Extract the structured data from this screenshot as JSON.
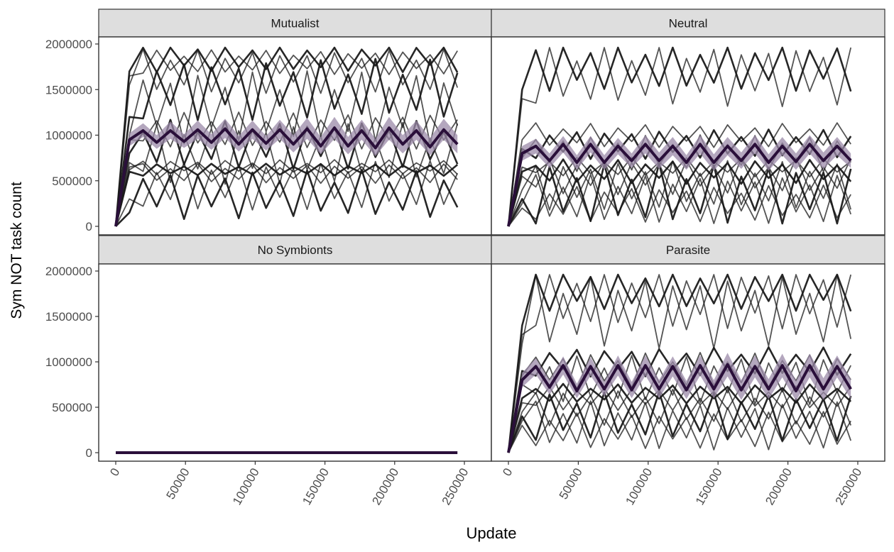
{
  "chart_data": {
    "type": "line",
    "layout": "facet-grid-2x2",
    "ylabel": "Sym NOT task count",
    "xlabel": "Update",
    "xlim": [
      0,
      245000
    ],
    "ylim": [
      0,
      2000000
    ],
    "x_ticks": [
      0,
      50000,
      100000,
      150000,
      200000,
      250000
    ],
    "x_tick_labels": [
      "0",
      "50000",
      "100000",
      "150000",
      "200000",
      "250000"
    ],
    "y_ticks": [
      0,
      500000,
      1000000,
      1500000,
      2000000
    ],
    "y_tick_labels": [
      "0",
      "500000",
      "1000000",
      "1500000",
      "2000000"
    ],
    "grid": false,
    "colors": {
      "runs": "#1a1a1a",
      "mean": "#2a0f3a",
      "ribbon": "#9b8aa8",
      "strip": "#dedede"
    },
    "panels": [
      {
        "title": "Mutualist",
        "mean": [
          0,
          950000,
          1050000,
          920000,
          1050000,
          930000,
          1060000,
          920000,
          1070000,
          900000,
          1060000,
          910000,
          1060000,
          900000,
          1070000,
          880000,
          1080000,
          880000,
          1050000,
          860000,
          1080000,
          900000,
          1050000,
          870000,
          1060000,
          900000
        ],
        "ribbon_low": [
          0,
          880000,
          980000,
          850000,
          960000,
          860000,
          960000,
          840000,
          970000,
          820000,
          960000,
          830000,
          960000,
          810000,
          960000,
          790000,
          960000,
          790000,
          950000,
          770000,
          950000,
          800000,
          950000,
          780000,
          950000,
          800000
        ],
        "ribbon_high": [
          0,
          1020000,
          1130000,
          1000000,
          1150000,
          1010000,
          1160000,
          1010000,
          1180000,
          990000,
          1160000,
          990000,
          1170000,
          1000000,
          1190000,
          980000,
          1200000,
          980000,
          1170000,
          960000,
          1200000,
          1000000,
          1160000,
          970000,
          1180000,
          1000000
        ],
        "runs": [
          {
            "base": 1850000,
            "amp": 120000,
            "start": 1700000
          },
          {
            "base": 1800000,
            "amp": 100000,
            "start": 1650000
          },
          {
            "base": 1700000,
            "amp": 180000,
            "start": 1550000
          },
          {
            "base": 1500000,
            "amp": 250000,
            "start": 1200000
          },
          {
            "base": 1300000,
            "amp": 300000,
            "start": 1000000
          },
          {
            "base": 1050000,
            "amp": 150000,
            "start": 950000
          },
          {
            "base": 900000,
            "amp": 200000,
            "start": 800000
          },
          {
            "base": 800000,
            "amp": 250000,
            "start": 700000
          },
          {
            "base": 650000,
            "amp": 60000,
            "start": 620000
          },
          {
            "base": 620000,
            "amp": 50000,
            "start": 600000
          },
          {
            "base": 580000,
            "amp": 80000,
            "start": 650000
          },
          {
            "base": 450000,
            "amp": 200000,
            "start": 300000
          },
          {
            "base": 350000,
            "amp": 200000,
            "start": 150000
          }
        ]
      },
      {
        "title": "Neutral",
        "mean": [
          0,
          800000,
          880000,
          720000,
          900000,
          700000,
          900000,
          700000,
          880000,
          720000,
          900000,
          720000,
          880000,
          700000,
          900000,
          700000,
          880000,
          720000,
          900000,
          700000,
          880000,
          710000,
          900000,
          720000,
          880000,
          720000
        ],
        "ribbon_low": [
          0,
          720000,
          800000,
          640000,
          810000,
          620000,
          810000,
          620000,
          790000,
          640000,
          800000,
          630000,
          780000,
          620000,
          800000,
          610000,
          780000,
          630000,
          800000,
          610000,
          780000,
          620000,
          800000,
          630000,
          780000,
          640000
        ],
        "ribbon_high": [
          0,
          880000,
          960000,
          800000,
          990000,
          780000,
          990000,
          780000,
          970000,
          800000,
          1000000,
          810000,
          980000,
          780000,
          1000000,
          790000,
          980000,
          810000,
          1000000,
          790000,
          980000,
          800000,
          1000000,
          810000,
          980000,
          800000
        ],
        "runs": [
          {
            "base": 1750000,
            "amp": 200000,
            "start": 1500000
          },
          {
            "base": 1650000,
            "amp": 250000,
            "start": 1400000
          },
          {
            "base": 1000000,
            "amp": 100000,
            "start": 950000
          },
          {
            "base": 900000,
            "amp": 120000,
            "start": 850000
          },
          {
            "base": 800000,
            "amp": 150000,
            "start": 750000
          },
          {
            "base": 650000,
            "amp": 80000,
            "start": 650000
          },
          {
            "base": 600000,
            "amp": 100000,
            "start": 600000
          },
          {
            "base": 550000,
            "amp": 150000,
            "start": 550000
          },
          {
            "base": 450000,
            "amp": 200000,
            "start": 400000
          },
          {
            "base": 350000,
            "amp": 250000,
            "start": 300000
          },
          {
            "base": 300000,
            "amp": 200000,
            "start": 250000
          },
          {
            "base": 250000,
            "amp": 150000,
            "start": 200000
          }
        ]
      },
      {
        "title": "No Symbionts",
        "mean": [
          0,
          0,
          0,
          0,
          0,
          0,
          0,
          0,
          0,
          0,
          0,
          0,
          0,
          0,
          0,
          0,
          0,
          0,
          0,
          0,
          0,
          0,
          0,
          0,
          0,
          0
        ],
        "ribbon_low": [],
        "ribbon_high": [],
        "runs": []
      },
      {
        "title": "Parasite",
        "mean": [
          0,
          800000,
          950000,
          720000,
          960000,
          680000,
          950000,
          700000,
          960000,
          690000,
          960000,
          700000,
          950000,
          690000,
          960000,
          700000,
          970000,
          690000,
          950000,
          700000,
          960000,
          680000,
          960000,
          700000,
          950000,
          700000
        ],
        "ribbon_low": [
          0,
          720000,
          860000,
          640000,
          860000,
          600000,
          850000,
          620000,
          850000,
          600000,
          850000,
          600000,
          840000,
          590000,
          850000,
          600000,
          840000,
          580000,
          830000,
          590000,
          830000,
          570000,
          830000,
          580000,
          830000,
          590000
        ],
        "ribbon_high": [
          0,
          880000,
          1040000,
          800000,
          1060000,
          760000,
          1050000,
          780000,
          1070000,
          780000,
          1070000,
          800000,
          1060000,
          790000,
          1070000,
          800000,
          1100000,
          800000,
          1070000,
          810000,
          1090000,
          790000,
          1090000,
          820000,
          1070000,
          810000
        ],
        "runs": [
          {
            "base": 1800000,
            "amp": 180000,
            "start": 1400000
          },
          {
            "base": 1700000,
            "amp": 250000,
            "start": 1300000
          },
          {
            "base": 1550000,
            "amp": 300000,
            "start": 1200000
          },
          {
            "base": 1000000,
            "amp": 120000,
            "start": 900000
          },
          {
            "base": 900000,
            "amp": 150000,
            "start": 850000
          },
          {
            "base": 800000,
            "amp": 200000,
            "start": 750000
          },
          {
            "base": 650000,
            "amp": 80000,
            "start": 600000
          },
          {
            "base": 600000,
            "amp": 100000,
            "start": 550000
          },
          {
            "base": 500000,
            "amp": 150000,
            "start": 450000
          },
          {
            "base": 400000,
            "amp": 200000,
            "start": 400000
          },
          {
            "base": 300000,
            "amp": 200000,
            "start": 350000
          },
          {
            "base": 250000,
            "amp": 150000,
            "start": 300000
          }
        ]
      }
    ]
  }
}
